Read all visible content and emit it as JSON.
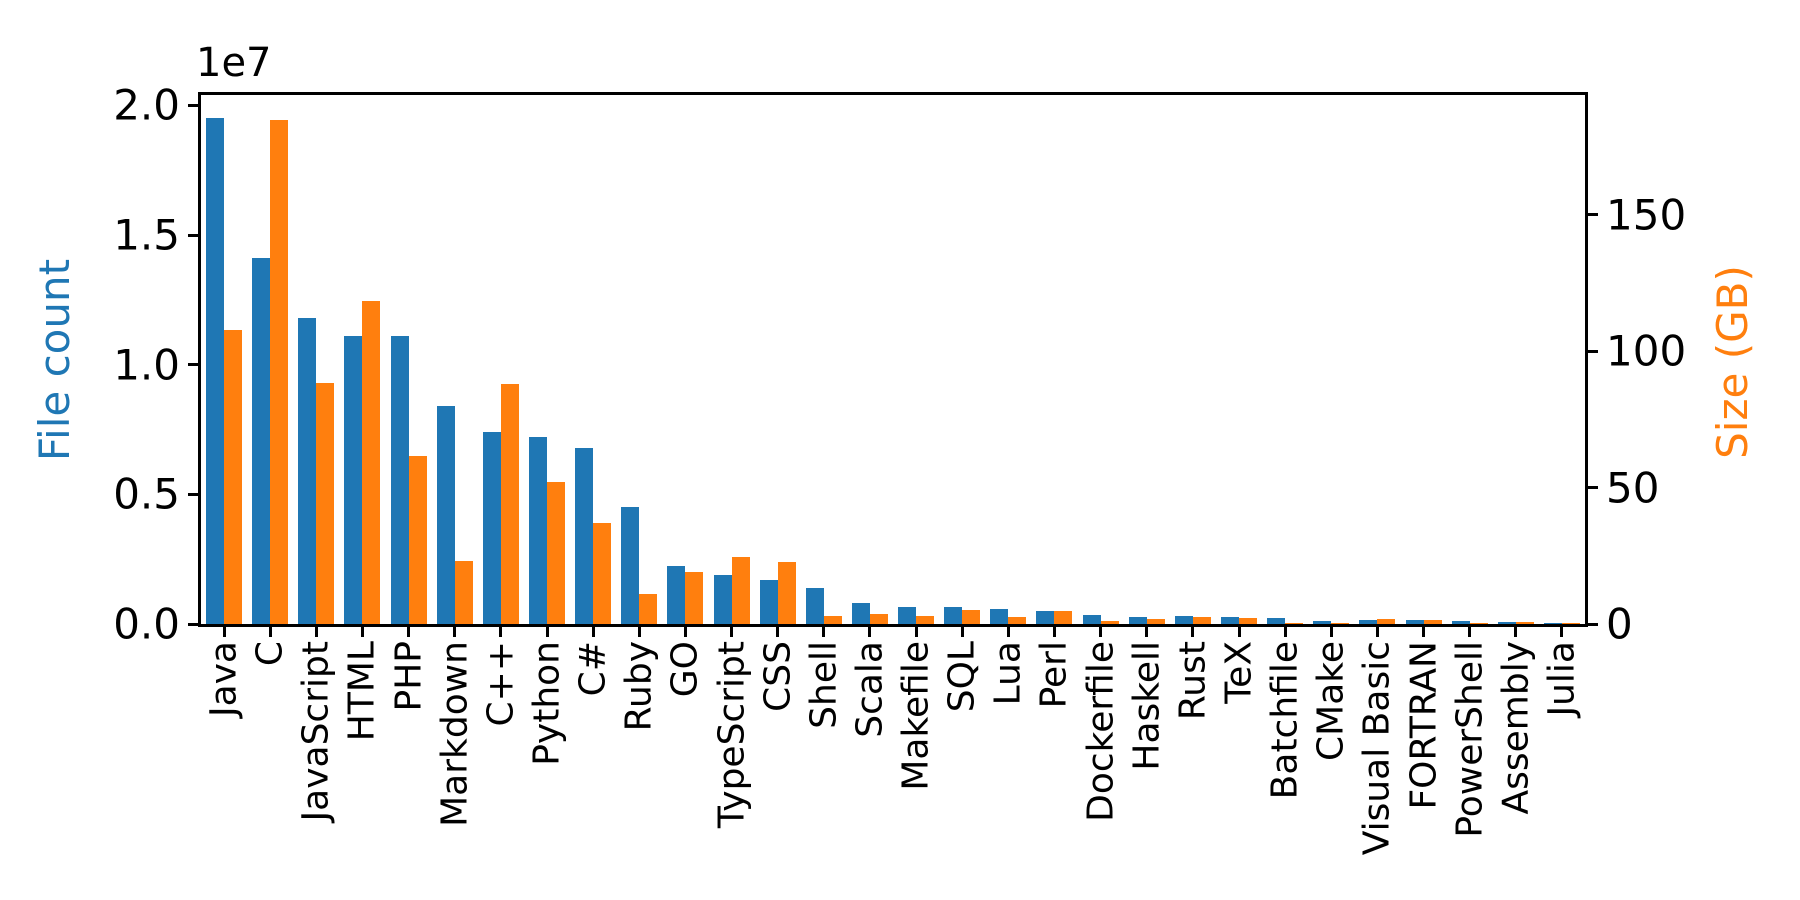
{
  "chart_data": {
    "type": "bar",
    "title": "",
    "categories": [
      "Java",
      "C",
      "JavaScript",
      "HTML",
      "PHP",
      "Markdown",
      "C++",
      "Python",
      "C#",
      "Ruby",
      "GO",
      "TypeScript",
      "CSS",
      "Shell",
      "Scala",
      "Makefile",
      "SQL",
      "Lua",
      "Perl",
      "Dockerfile",
      "Haskell",
      "Rust",
      "TeX",
      "Batchfile",
      "CMake",
      "Visual Basic",
      "FORTRAN",
      "PowerShell",
      "Assembly",
      "Julia"
    ],
    "series": [
      {
        "name": "File count",
        "axis": "left",
        "color": "#1f77b4",
        "values": [
          19500000,
          14100000,
          11800000,
          11100000,
          11100000,
          8400000,
          7400000,
          7200000,
          6800000,
          4500000,
          2250000,
          1900000,
          1700000,
          1400000,
          810000,
          640000,
          660000,
          570000,
          500000,
          350000,
          280000,
          300000,
          260000,
          250000,
          130000,
          170000,
          140000,
          110000,
          90000,
          50000
        ]
      },
      {
        "name": "Size (GB)",
        "axis": "right",
        "color": "#ff7f0e",
        "values": [
          108,
          185,
          88.5,
          118.5,
          61.5,
          23,
          88,
          52,
          37,
          11,
          19,
          24.5,
          22.7,
          2.8,
          3.7,
          2.8,
          5.3,
          2.5,
          4.8,
          1,
          1.9,
          2.6,
          2.3,
          0.3,
          0.2,
          1.9,
          1.6,
          0.5,
          0.9,
          0.3
        ]
      }
    ],
    "left_axis": {
      "label": "File count",
      "color": "#1f77b4",
      "offset_text": "1e7",
      "tick_labels": [
        "0.0",
        "0.5",
        "1.0",
        "1.5",
        "2.0"
      ],
      "tick_values": [
        0,
        5000000,
        10000000,
        15000000,
        20000000
      ],
      "ylim": [
        0,
        20400000
      ]
    },
    "right_axis": {
      "label": "Size (GB)",
      "color": "#ff7f0e",
      "tick_labels": [
        "0",
        "50",
        "100",
        "150"
      ],
      "tick_values": [
        0,
        50,
        100,
        150
      ],
      "ylim": [
        0,
        194
      ]
    },
    "x_axis": {
      "tick_rotation_deg": 90
    },
    "grid": false,
    "legend": false
  }
}
